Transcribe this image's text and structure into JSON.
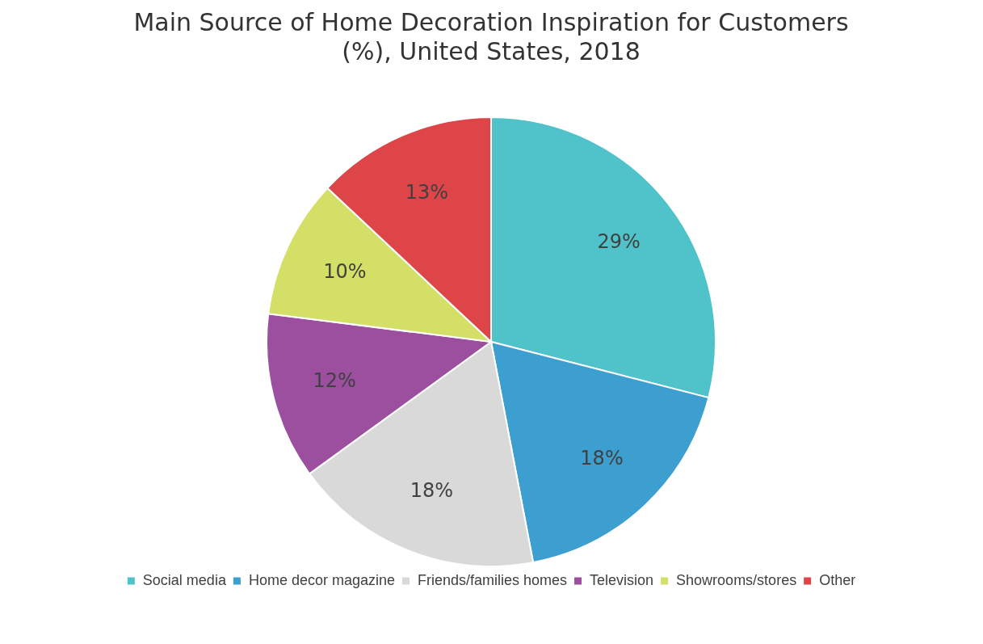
{
  "chart_data": {
    "type": "pie",
    "title": "Main Source of Home Decoration Inspiration for Customers (%), United States, 2018",
    "categories": [
      "Social media",
      "Home decor magazine",
      "Friends/families homes",
      "Television",
      "Showrooms/stores",
      "Other"
    ],
    "values": [
      29,
      18,
      18,
      12,
      10,
      13
    ],
    "value_labels": [
      "29%",
      "18%",
      "18%",
      "12%",
      "10%",
      "13%"
    ],
    "colors": [
      "#4fc3c9",
      "#3d9ed0",
      "#d9d9d9",
      "#9b4f9e",
      "#d3df66",
      "#de4549"
    ],
    "legend": "bottom"
  }
}
